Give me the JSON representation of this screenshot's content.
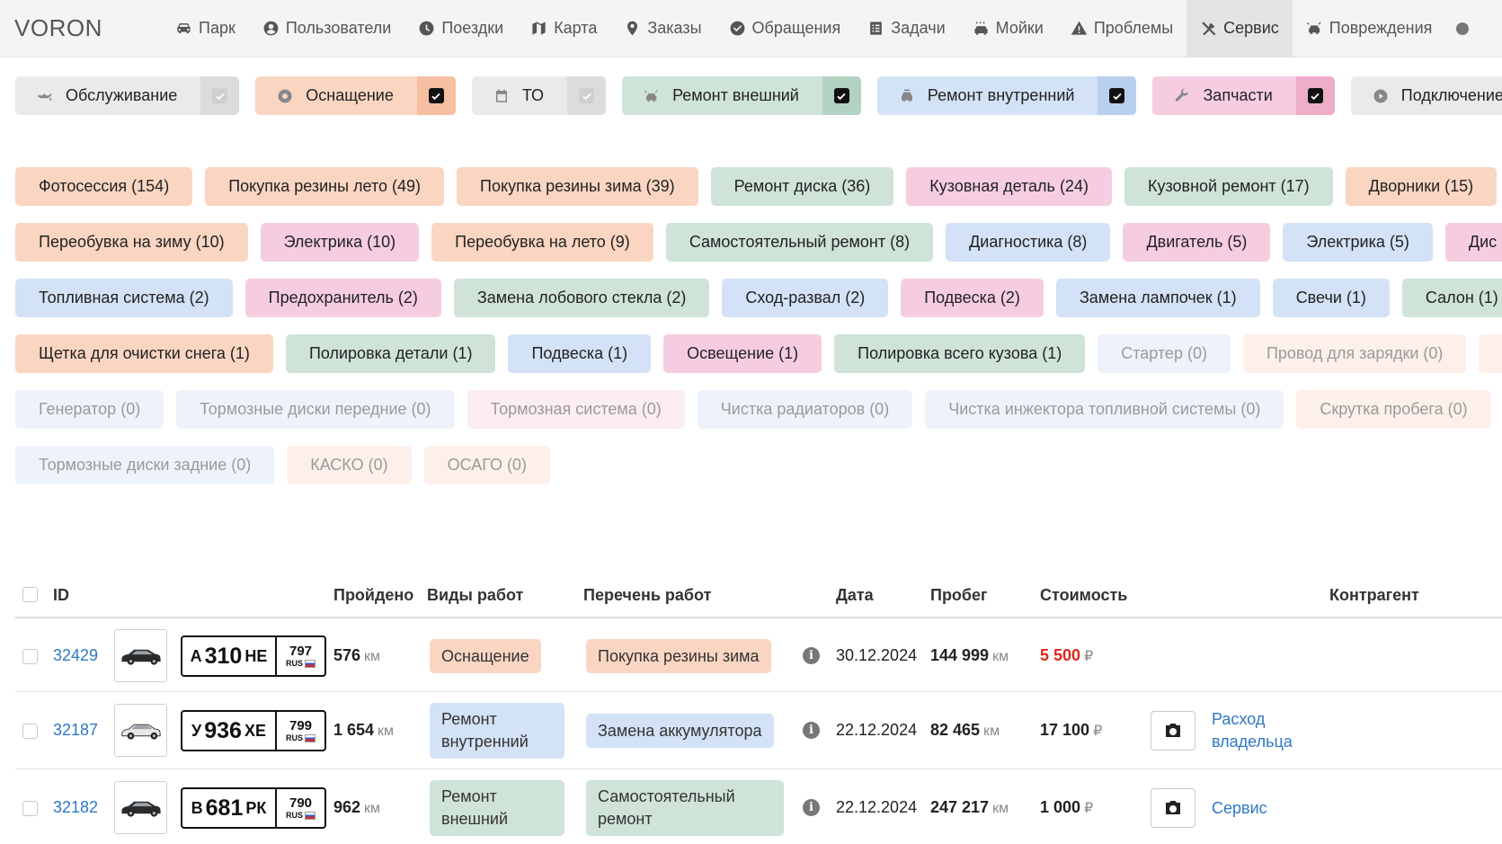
{
  "app": {
    "brand": "VORON"
  },
  "nav": [
    {
      "label": "Парк",
      "icon": "car-icon",
      "active": false
    },
    {
      "label": "Пользователи",
      "icon": "user-icon",
      "active": false
    },
    {
      "label": "Поездки",
      "icon": "clock-icon",
      "active": false
    },
    {
      "label": "Карта",
      "icon": "map-icon",
      "active": false
    },
    {
      "label": "Заказы",
      "icon": "map-pin-icon",
      "active": false
    },
    {
      "label": "Обращения",
      "icon": "check-circle-icon",
      "active": false
    },
    {
      "label": "Задачи",
      "icon": "tasks-icon",
      "active": false
    },
    {
      "label": "Мойки",
      "icon": "car-wash-icon",
      "active": false
    },
    {
      "label": "Проблемы",
      "icon": "warning-icon",
      "active": false
    },
    {
      "label": "Сервис",
      "icon": "tools-icon",
      "active": true
    },
    {
      "label": "Повреждения",
      "icon": "car-crash-icon",
      "active": false
    }
  ],
  "categories": [
    {
      "label": "Обслуживание",
      "icon": "oil-can-icon",
      "bg": "#eaeaea",
      "chk_bg": "#dcdcdc",
      "checked": false
    },
    {
      "label": "Оснащение",
      "icon": "gear-icon",
      "bg": "#fad6c2",
      "chk_bg": "#f6bfa2",
      "checked": true
    },
    {
      "label": "ТО",
      "icon": "calendar-icon",
      "bg": "#eaeaea",
      "chk_bg": "#dcdcdc",
      "checked": false
    },
    {
      "label": "Ремонт внешний",
      "icon": "car-crash-icon",
      "bg": "#cfe3d8",
      "chk_bg": "#b3d2c2",
      "checked": true
    },
    {
      "label": "Ремонт внутренний",
      "icon": "car-repair-icon",
      "bg": "#d3e2f6",
      "chk_bg": "#b8cff0",
      "checked": true
    },
    {
      "label": "Запчасти",
      "icon": "wrench-icon",
      "bg": "#f6cde0",
      "chk_bg": "#eeadc9",
      "checked": true
    },
    {
      "label": "Подключение",
      "icon": "play-circle-icon",
      "bg": "#eaeaea",
      "chk_bg": "#dcdcdc",
      "checked": false
    }
  ],
  "tag_rows": [
    [
      {
        "label": "Фотосессия (154)",
        "color": "#fad6c2"
      },
      {
        "label": "Покупка резины лето (49)",
        "color": "#fad6c2"
      },
      {
        "label": "Покупка резины зима (39)",
        "color": "#fad6c2"
      },
      {
        "label": "Ремонт диска (36)",
        "color": "#cfe3d8"
      },
      {
        "label": "Кузовная деталь (24)",
        "color": "#f6cde0"
      },
      {
        "label": "Кузовной ремонт (17)",
        "color": "#cfe3d8"
      },
      {
        "label": "Дворники (15)",
        "color": "#fad6c2"
      }
    ],
    [
      {
        "label": "Переобувка на зиму (10)",
        "color": "#fad6c2"
      },
      {
        "label": "Электрика (10)",
        "color": "#f6cde0"
      },
      {
        "label": "Переобувка на лето (9)",
        "color": "#fad6c2"
      },
      {
        "label": "Самостоятельный ремонт (8)",
        "color": "#cfe3d8"
      },
      {
        "label": "Диагностика (8)",
        "color": "#d3e2f6"
      },
      {
        "label": "Двигатель (5)",
        "color": "#f6cde0"
      },
      {
        "label": "Электрика (5)",
        "color": "#d3e2f6"
      },
      {
        "label": "Дис",
        "color": "#f6cde0"
      }
    ],
    [
      {
        "label": "Топливная система (2)",
        "color": "#d3e2f6"
      },
      {
        "label": "Предохранитель (2)",
        "color": "#f6cde0"
      },
      {
        "label": "Замена лобового стекла (2)",
        "color": "#cfe3d8"
      },
      {
        "label": "Сход-развал (2)",
        "color": "#d3e2f6"
      },
      {
        "label": "Подвеска (2)",
        "color": "#f6cde0"
      },
      {
        "label": "Замена лампочек (1)",
        "color": "#d3e2f6"
      },
      {
        "label": "Свечи (1)",
        "color": "#d3e2f6"
      },
      {
        "label": "Салон (1)",
        "color": "#cfe3d8"
      }
    ],
    [
      {
        "label": "Щетка для очистки снега (1)",
        "color": "#fad6c2"
      },
      {
        "label": "Полировка детали (1)",
        "color": "#cfe3d8"
      },
      {
        "label": "Подвеска (1)",
        "color": "#d3e2f6"
      },
      {
        "label": "Освещение (1)",
        "color": "#f6cde0"
      },
      {
        "label": "Полировка всего кузова (1)",
        "color": "#cfe3d8"
      },
      {
        "label": "Стартер (0)",
        "color": "#eef3fb",
        "zero": true
      },
      {
        "label": "Провод для зарядки (0)",
        "color": "#fdf0ea",
        "zero": true
      },
      {
        "label": "",
        "color": "#fdf0ea",
        "zero": true
      }
    ],
    [
      {
        "label": "Генератор (0)",
        "color": "#eef3fb",
        "zero": true
      },
      {
        "label": "Тормозные диски передние (0)",
        "color": "#eef3fb",
        "zero": true
      },
      {
        "label": "Тормозная система (0)",
        "color": "#fcecf3",
        "zero": true
      },
      {
        "label": "Чистка радиаторов (0)",
        "color": "#eef3fb",
        "zero": true
      },
      {
        "label": "Чистка инжектора топливной системы (0)",
        "color": "#eef3fb",
        "zero": true
      },
      {
        "label": "Скрутка пробега (0)",
        "color": "#fdf0ea",
        "zero": true
      }
    ],
    [
      {
        "label": "Тормозные диски задние (0)",
        "color": "#eef3fb",
        "zero": true
      },
      {
        "label": "КАСКО (0)",
        "color": "#fdf0ea",
        "zero": true
      },
      {
        "label": "ОСАГО (0)",
        "color": "#fdf0ea",
        "zero": true
      }
    ]
  ],
  "table": {
    "headers": {
      "id": "ID",
      "distance": "Пройдено",
      "work_types": "Виды работ",
      "work_list": "Перечень работ",
      "date": "Дата",
      "mileage": "Пробег",
      "cost": "Стоимость",
      "counterparty": "Контрагент"
    },
    "rows": [
      {
        "id": "32429",
        "plate": {
          "letter1": "А",
          "digits": "310",
          "letters2": "НЕ",
          "region": "797",
          "rus": "RUS"
        },
        "car_color": "#2b2b2b",
        "distance": "576",
        "distance_unit": "км",
        "work_type": "Оснащение",
        "work_type_color": "#fad6c2",
        "work_item": "Покупка резины зима",
        "work_item_color": "#fad6c2",
        "date": "30.12.2024",
        "mileage": "144 999",
        "mileage_unit": "км",
        "cost": "5 500",
        "cost_unit": "₽",
        "cost_red": true,
        "has_photo": false,
        "counterparty": ""
      },
      {
        "id": "32187",
        "plate": {
          "letter1": "У",
          "digits": "936",
          "letters2": "ХЕ",
          "region": "799",
          "rus": "RUS"
        },
        "car_color": "#e8e8e8",
        "distance": "1 654",
        "distance_unit": "км",
        "work_type": "Ремонт внутренний",
        "work_type_color": "#d3e2f6",
        "work_item": "Замена аккумулятора",
        "work_item_color": "#d3e2f6",
        "date": "22.12.2024",
        "mileage": "82 465",
        "mileage_unit": "км",
        "cost": "17 100",
        "cost_unit": "₽",
        "cost_red": false,
        "has_photo": true,
        "counterparty": "Расход владельца"
      },
      {
        "id": "32182",
        "plate": {
          "letter1": "В",
          "digits": "681",
          "letters2": "РК",
          "region": "790",
          "rus": "RUS"
        },
        "car_color": "#2b2b2b",
        "distance": "962",
        "distance_unit": "км",
        "work_type": "Ремонт внешний",
        "work_type_color": "#cfe3d8",
        "work_item": "Самостоятельный ремонт",
        "work_item_color": "#cfe3d8",
        "date": "22.12.2024",
        "mileage": "247 217",
        "mileage_unit": "км",
        "cost": "1 000",
        "cost_unit": "₽",
        "cost_red": false,
        "has_photo": true,
        "counterparty": "Сервис"
      }
    ]
  }
}
